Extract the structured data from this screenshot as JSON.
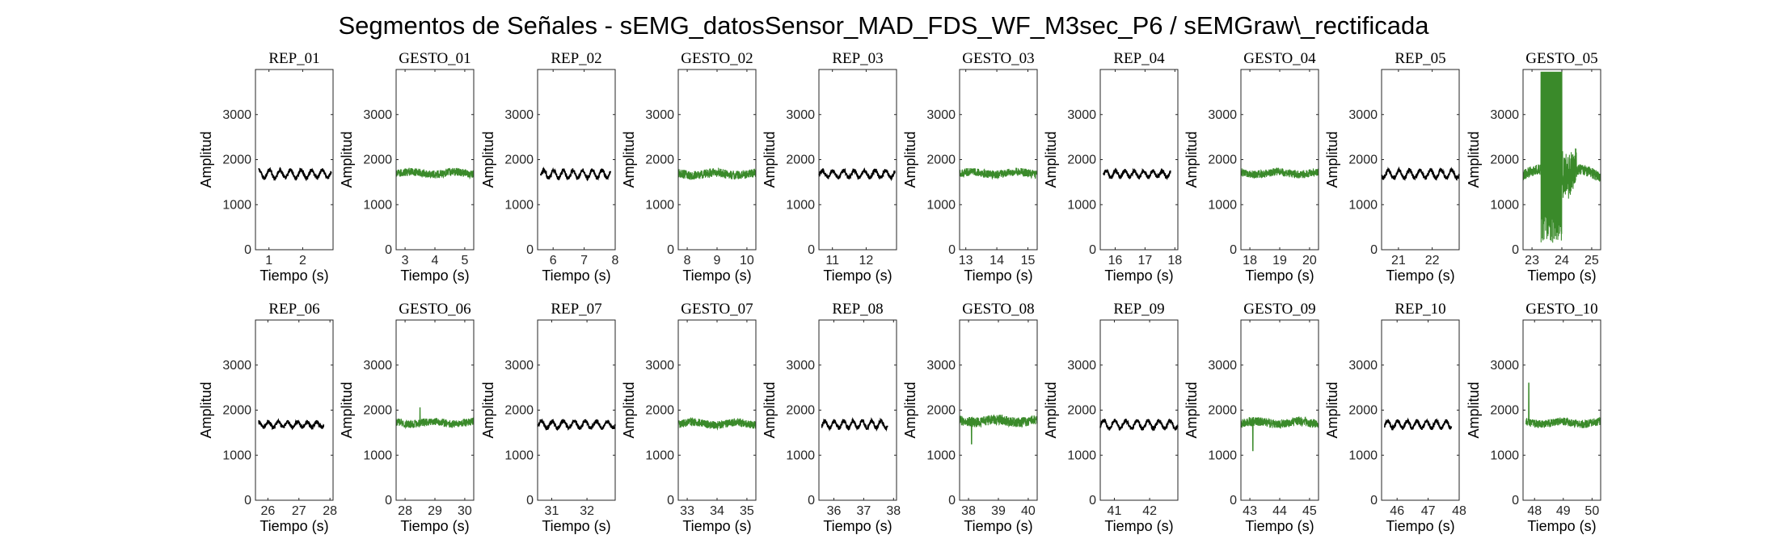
{
  "title": "Segmentos de Señales - sEMG_datosSensor_MAD_FDS_WF_M3sec_P6 / sEMGraw\\_rectificada",
  "colors": {
    "rep": "#000000",
    "gesto": "#3a8a2a",
    "axis": "#262626"
  },
  "chart_data": [
    {
      "type": "line",
      "title": "REP_01",
      "xlabel": "Tiempo (s)",
      "ylabel": "Amplitud",
      "xlim": [
        0.6,
        2.9
      ],
      "ylim": [
        0,
        4000
      ],
      "xticks": [
        1,
        2
      ],
      "yticks": [
        0,
        1000,
        2000,
        3000
      ],
      "series": [
        {
          "kind": "rep",
          "start": 0.7,
          "end": 2.85,
          "baseline": 1680,
          "pattern": "oscillation",
          "amp": 90,
          "noise": 40
        }
      ]
    },
    {
      "type": "line",
      "title": "GESTO_01",
      "xlabel": "Tiempo (s)",
      "ylabel": "Amplitud",
      "xlim": [
        2.7,
        5.3
      ],
      "ylim": [
        0,
        4000
      ],
      "xticks": [
        3,
        4,
        5
      ],
      "yticks": [
        0,
        1000,
        2000,
        3000
      ],
      "series": [
        {
          "kind": "gesto",
          "start": 2.7,
          "end": 5.3,
          "baseline": 1700,
          "pattern": "noise",
          "amp": 60,
          "noise": 90
        }
      ]
    },
    {
      "type": "line",
      "title": "REP_02",
      "xlabel": "Tiempo (s)",
      "ylabel": "Amplitud",
      "xlim": [
        5.5,
        8.0
      ],
      "ylim": [
        0,
        4000
      ],
      "xticks": [
        6,
        7,
        8
      ],
      "yticks": [
        0,
        1000,
        2000,
        3000
      ],
      "series": [
        {
          "kind": "rep",
          "start": 5.6,
          "end": 7.85,
          "baseline": 1680,
          "pattern": "oscillation",
          "amp": 90,
          "noise": 40
        }
      ]
    },
    {
      "type": "line",
      "title": "GESTO_02",
      "xlabel": "Tiempo (s)",
      "ylabel": "Amplitud",
      "xlim": [
        7.7,
        10.3
      ],
      "ylim": [
        0,
        4000
      ],
      "xticks": [
        8,
        9,
        10
      ],
      "yticks": [
        0,
        1000,
        2000,
        3000
      ],
      "series": [
        {
          "kind": "gesto",
          "start": 7.7,
          "end": 10.3,
          "baseline": 1680,
          "pattern": "noise",
          "amp": 60,
          "noise": 100
        }
      ]
    },
    {
      "type": "line",
      "title": "REP_03",
      "xlabel": "Tiempo (s)",
      "ylabel": "Amplitud",
      "xlim": [
        10.6,
        12.9
      ],
      "ylim": [
        0,
        4000
      ],
      "xticks": [
        11,
        12
      ],
      "yticks": [
        0,
        1000,
        2000,
        3000
      ],
      "series": [
        {
          "kind": "rep",
          "start": 10.6,
          "end": 12.85,
          "baseline": 1680,
          "pattern": "oscillation",
          "amp": 80,
          "noise": 40
        }
      ]
    },
    {
      "type": "line",
      "title": "GESTO_03",
      "xlabel": "Tiempo (s)",
      "ylabel": "Amplitud",
      "xlim": [
        12.8,
        15.3
      ],
      "ylim": [
        0,
        4000
      ],
      "xticks": [
        13,
        14,
        15
      ],
      "yticks": [
        0,
        1000,
        2000,
        3000
      ],
      "series": [
        {
          "kind": "gesto",
          "start": 12.8,
          "end": 15.3,
          "baseline": 1700,
          "pattern": "noise",
          "amp": 60,
          "noise": 90
        }
      ]
    },
    {
      "type": "line",
      "title": "REP_04",
      "xlabel": "Tiempo (s)",
      "ylabel": "Amplitud",
      "xlim": [
        15.5,
        18.1
      ],
      "ylim": [
        0,
        4000
      ],
      "xticks": [
        16,
        17,
        18
      ],
      "yticks": [
        0,
        1000,
        2000,
        3000
      ],
      "series": [
        {
          "kind": "rep",
          "start": 15.6,
          "end": 17.85,
          "baseline": 1680,
          "pattern": "oscillation",
          "amp": 70,
          "noise": 40
        }
      ]
    },
    {
      "type": "line",
      "title": "GESTO_04",
      "xlabel": "Tiempo (s)",
      "ylabel": "Amplitud",
      "xlim": [
        17.7,
        20.3
      ],
      "ylim": [
        0,
        4000
      ],
      "xticks": [
        18,
        19,
        20
      ],
      "yticks": [
        0,
        1000,
        2000,
        3000
      ],
      "series": [
        {
          "kind": "gesto",
          "start": 17.7,
          "end": 20.3,
          "baseline": 1700,
          "pattern": "noise",
          "amp": 60,
          "noise": 90
        }
      ]
    },
    {
      "type": "line",
      "title": "REP_05",
      "xlabel": "Tiempo (s)",
      "ylabel": "Amplitud",
      "xlim": [
        20.5,
        22.8
      ],
      "ylim": [
        0,
        4000
      ],
      "xticks": [
        21,
        22
      ],
      "yticks": [
        0,
        1000,
        2000,
        3000
      ],
      "series": [
        {
          "kind": "rep",
          "start": 20.5,
          "end": 22.8,
          "baseline": 1680,
          "pattern": "oscillation",
          "amp": 90,
          "noise": 40
        }
      ]
    },
    {
      "type": "line",
      "title": "GESTO_05",
      "xlabel": "Tiempo (s)",
      "ylabel": "Amplitud",
      "xlim": [
        22.7,
        25.3
      ],
      "ylim": [
        0,
        4000
      ],
      "xticks": [
        23,
        24,
        25
      ],
      "yticks": [
        0,
        1000,
        2000,
        3000
      ],
      "series": [
        {
          "kind": "gesto",
          "start": 22.7,
          "end": 25.3,
          "baseline": 1700,
          "pattern": "burst",
          "amp": 150,
          "noise": 120,
          "burst": [
            23.3,
            24.0
          ]
        }
      ]
    },
    {
      "type": "line",
      "title": "REP_06",
      "xlabel": "Tiempo (s)",
      "ylabel": "Amplitud",
      "xlim": [
        25.6,
        28.1
      ],
      "ylim": [
        0,
        4000
      ],
      "xticks": [
        26,
        27,
        28
      ],
      "yticks": [
        0,
        1000,
        2000,
        3000
      ],
      "series": [
        {
          "kind": "rep",
          "start": 25.7,
          "end": 27.8,
          "baseline": 1680,
          "pattern": "oscillation",
          "amp": 60,
          "noise": 40
        }
      ]
    },
    {
      "type": "line",
      "title": "GESTO_06",
      "xlabel": "Tiempo (s)",
      "ylabel": "Amplitud",
      "xlim": [
        27.7,
        30.3
      ],
      "ylim": [
        0,
        4000
      ],
      "xticks": [
        28,
        29,
        30
      ],
      "yticks": [
        0,
        1000,
        2000,
        3000
      ],
      "series": [
        {
          "kind": "gesto",
          "start": 27.7,
          "end": 30.3,
          "baseline": 1720,
          "pattern": "noise",
          "amp": 60,
          "noise": 90,
          "spike": [
            28.5,
            2050
          ]
        }
      ]
    },
    {
      "type": "line",
      "title": "REP_07",
      "xlabel": "Tiempo (s)",
      "ylabel": "Amplitud",
      "xlim": [
        30.6,
        32.8
      ],
      "ylim": [
        0,
        4000
      ],
      "xticks": [
        31,
        32
      ],
      "yticks": [
        0,
        1000,
        2000,
        3000
      ],
      "series": [
        {
          "kind": "rep",
          "start": 30.6,
          "end": 32.8,
          "baseline": 1680,
          "pattern": "oscillation",
          "amp": 80,
          "noise": 40
        }
      ]
    },
    {
      "type": "line",
      "title": "GESTO_07",
      "xlabel": "Tiempo (s)",
      "ylabel": "Amplitud",
      "xlim": [
        32.7,
        35.3
      ],
      "ylim": [
        0,
        4000
      ],
      "xticks": [
        33,
        34,
        35
      ],
      "yticks": [
        0,
        1000,
        2000,
        3000
      ],
      "series": [
        {
          "kind": "gesto",
          "start": 32.7,
          "end": 35.3,
          "baseline": 1700,
          "pattern": "noise",
          "amp": 60,
          "noise": 90
        }
      ]
    },
    {
      "type": "line",
      "title": "REP_08",
      "xlabel": "Tiempo (s)",
      "ylabel": "Amplitud",
      "xlim": [
        35.5,
        38.1
      ],
      "ylim": [
        0,
        4000
      ],
      "xticks": [
        36,
        37,
        38
      ],
      "yticks": [
        0,
        1000,
        2000,
        3000
      ],
      "series": [
        {
          "kind": "rep",
          "start": 35.6,
          "end": 37.8,
          "baseline": 1680,
          "pattern": "oscillation",
          "amp": 80,
          "noise": 40
        }
      ]
    },
    {
      "type": "line",
      "title": "GESTO_08",
      "xlabel": "Tiempo (s)",
      "ylabel": "Amplitud",
      "xlim": [
        37.7,
        40.3
      ],
      "ylim": [
        0,
        4000
      ],
      "xticks": [
        38,
        39,
        40
      ],
      "yticks": [
        0,
        1000,
        2000,
        3000
      ],
      "series": [
        {
          "kind": "gesto",
          "start": 37.7,
          "end": 40.3,
          "baseline": 1760,
          "pattern": "noise",
          "amp": 60,
          "noise": 110,
          "spike": [
            38.1,
            1250
          ]
        }
      ]
    },
    {
      "type": "line",
      "title": "REP_09",
      "xlabel": "Tiempo (s)",
      "ylabel": "Amplitud",
      "xlim": [
        40.6,
        42.8
      ],
      "ylim": [
        0,
        4000
      ],
      "xticks": [
        41,
        42
      ],
      "yticks": [
        0,
        1000,
        2000,
        3000
      ],
      "series": [
        {
          "kind": "rep",
          "start": 40.6,
          "end": 42.8,
          "baseline": 1680,
          "pattern": "oscillation",
          "amp": 90,
          "noise": 40
        }
      ]
    },
    {
      "type": "line",
      "title": "GESTO_09",
      "xlabel": "Tiempo (s)",
      "ylabel": "Amplitud",
      "xlim": [
        42.7,
        45.3
      ],
      "ylim": [
        0,
        4000
      ],
      "xticks": [
        43,
        44,
        45
      ],
      "yticks": [
        0,
        1000,
        2000,
        3000
      ],
      "series": [
        {
          "kind": "gesto",
          "start": 42.7,
          "end": 45.3,
          "baseline": 1720,
          "pattern": "noise",
          "amp": 60,
          "noise": 100,
          "spike": [
            43.1,
            1100
          ]
        }
      ]
    },
    {
      "type": "line",
      "title": "REP_10",
      "xlabel": "Tiempo (s)",
      "ylabel": "Amplitud",
      "xlim": [
        45.5,
        48.0
      ],
      "ylim": [
        0,
        4000
      ],
      "xticks": [
        46,
        47,
        48
      ],
      "yticks": [
        0,
        1000,
        2000,
        3000
      ],
      "series": [
        {
          "kind": "rep",
          "start": 45.6,
          "end": 47.75,
          "baseline": 1680,
          "pattern": "oscillation",
          "amp": 80,
          "noise": 40
        }
      ]
    },
    {
      "type": "line",
      "title": "GESTO_10",
      "xlabel": "Tiempo (s)",
      "ylabel": "Amplitud",
      "xlim": [
        47.6,
        50.3
      ],
      "ylim": [
        0,
        4000
      ],
      "xticks": [
        48,
        49,
        50
      ],
      "yticks": [
        0,
        1000,
        2000,
        3000
      ],
      "series": [
        {
          "kind": "gesto",
          "start": 47.7,
          "end": 50.3,
          "baseline": 1720,
          "pattern": "noise",
          "amp": 60,
          "noise": 90,
          "spike": [
            47.8,
            2600
          ]
        }
      ]
    }
  ]
}
